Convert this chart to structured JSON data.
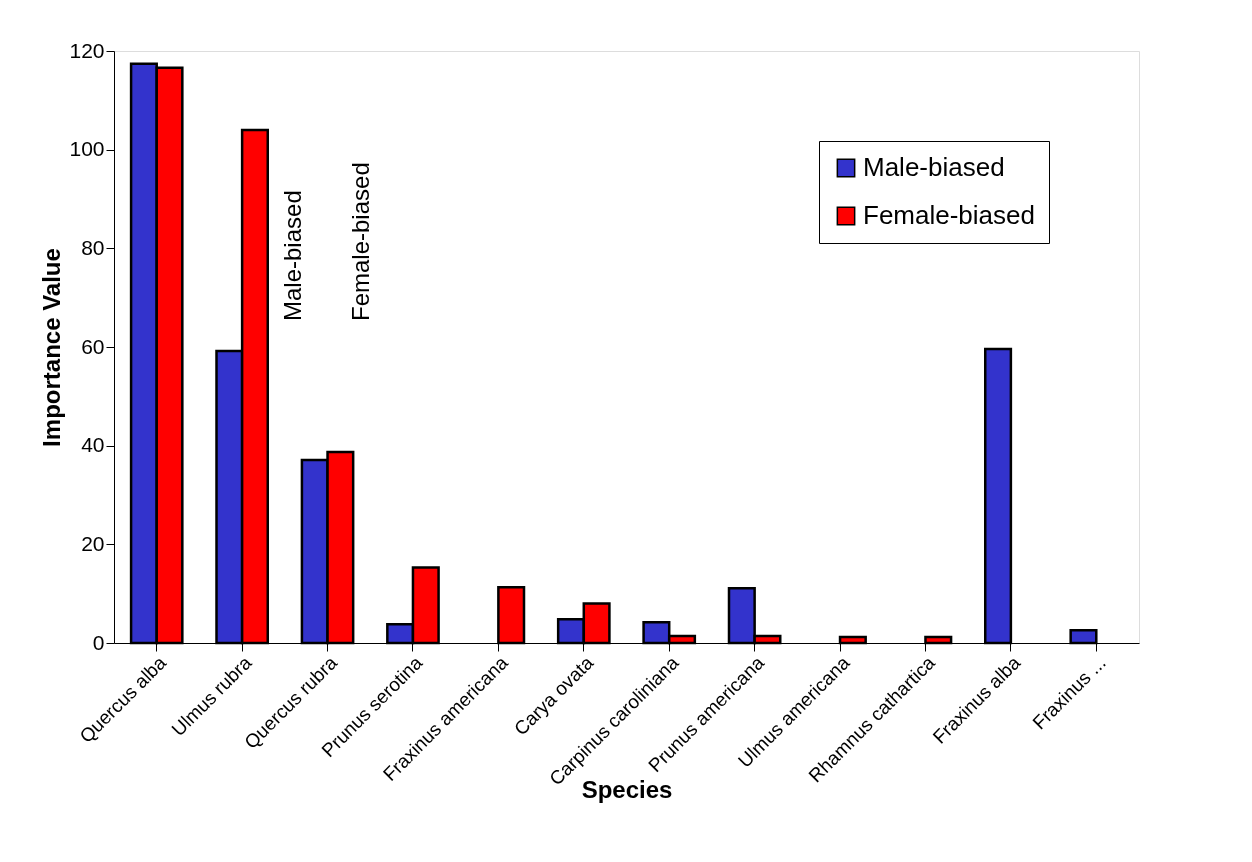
{
  "chart_data": {
    "type": "bar",
    "xlabel": "Species",
    "ylabel": "Importance Value",
    "categories": [
      "Quercus alba",
      "Ulmus rubra",
      "Quercus rubra",
      "Prunus serotina",
      "Fraxinus americana",
      "Carya ovata",
      "Carpinus caroliniana",
      "Prunus americana",
      "Ulmus americana",
      "Rhamnus cathartica",
      "Fraxinus alba",
      "Fraxinus ..."
    ],
    "series": [
      {
        "name": "Male-biased",
        "color": "#3333cc",
        "values": [
          117.4,
          59.2,
          37.1,
          3.8,
          null,
          4.8,
          4.2,
          11.1,
          null,
          null,
          59.6,
          2.6
        ]
      },
      {
        "name": "Female-biased",
        "color": "#ff0000",
        "values": [
          116.6,
          104,
          38.7,
          15.3,
          11.3,
          8.0,
          1.4,
          1.4,
          1.2,
          1.2,
          null,
          null
        ]
      }
    ],
    "annotations": [
      "Male-biased",
      "Female-biased"
    ],
    "ylim": [
      0,
      120
    ],
    "yticks": [
      0,
      20,
      40,
      60,
      80,
      100,
      120
    ],
    "grid": false,
    "legend": "top right"
  }
}
